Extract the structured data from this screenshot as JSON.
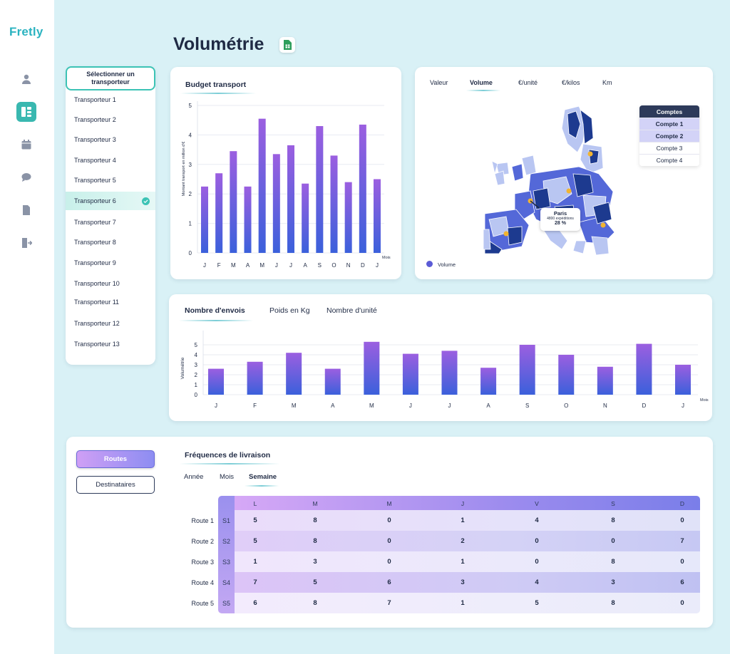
{
  "app": {
    "logo": "Fretly",
    "page_title": "Volumétrie"
  },
  "sidebar": {
    "icons": [
      "user-icon",
      "dashboard-icon",
      "calendar-icon",
      "chat-icon",
      "document-icon",
      "logout-icon"
    ],
    "active": "dashboard-icon"
  },
  "carriers": {
    "header": "Sélectionner un transporteur",
    "items": [
      "Transporteur 1",
      "Transporteur 2",
      "Transporteur 3",
      "Transporteur 4",
      "Transporteur 5",
      "Transporteur 6",
      "Transporteur 7",
      "Transporteur 8",
      "Transporteur 9",
      "Transporteur 10",
      "Transporteur 11",
      "Transporteur 12",
      "Transporteur 13"
    ],
    "selected_index": 5
  },
  "budget": {
    "title": "Budget transport",
    "chart_data": {
      "type": "bar",
      "categories": [
        "J",
        "F",
        "M",
        "A",
        "M",
        "J",
        "J",
        "A",
        "S",
        "O",
        "N",
        "D",
        "J"
      ],
      "values": [
        2.25,
        2.7,
        3.45,
        2.25,
        4.55,
        3.35,
        3.65,
        2.35,
        4.3,
        3.3,
        2.4,
        4.35,
        2.5
      ],
      "ylabel": "Montant transport en million d'€",
      "xlabel": "Mois",
      "ylim": [
        0,
        5
      ],
      "yticks": [
        0,
        1,
        2,
        3,
        4,
        5
      ],
      "colors": {
        "top": "#9b5fe0",
        "bottom": "#3b60db"
      }
    }
  },
  "map": {
    "tabs": [
      "Valeur",
      "Volume",
      "€/unité",
      "€/kilos",
      "Km"
    ],
    "active_tab": "Volume",
    "tooltip": {
      "city": "Paris",
      "detail": "4800 expéditions",
      "percent": "28 %"
    },
    "legend": "Volume",
    "accounts": {
      "header": "Comptes",
      "items": [
        "Compte 1",
        "Compte 2",
        "Compte 3",
        "Compte 4"
      ],
      "selected": [
        "Compte 1",
        "Compte 2"
      ]
    },
    "colors": {
      "dark": "#1d3a8f",
      "mid": "#5468d8",
      "light": "#b9c6f2",
      "marker": "#f2b430"
    }
  },
  "shipments": {
    "tabs": [
      "Nombre d'envois",
      "Poids en Kg",
      "Nombre d'unité"
    ],
    "active_tab": "Nombre d'envois",
    "chart_data": {
      "type": "bar",
      "categories": [
        "J",
        "F",
        "M",
        "A",
        "M",
        "J",
        "J",
        "A",
        "S",
        "O",
        "N",
        "D",
        "J"
      ],
      "values": [
        2.6,
        3.3,
        4.2,
        2.6,
        5.3,
        4.1,
        4.4,
        2.7,
        5.0,
        4.0,
        2.8,
        5.1,
        3.0
      ],
      "ylabel": "Volumétrie",
      "xlabel": "Mois",
      "ylim": [
        0,
        6
      ],
      "yticks": [
        0,
        1,
        2,
        3,
        4,
        5
      ]
    }
  },
  "frequencies": {
    "buttons": {
      "routes": "Routes",
      "recipients": "Destinataires"
    },
    "title": "Fréquences de livraison",
    "tabs": [
      "Année",
      "Mois",
      "Semaine"
    ],
    "active_tab": "Semaine",
    "days": [
      "L",
      "M",
      "M",
      "J",
      "V",
      "S",
      "D"
    ],
    "rows": [
      {
        "route": "Route 1",
        "week": "S1",
        "values": [
          "5",
          "8",
          "0",
          "1",
          "4",
          "8",
          "0"
        ]
      },
      {
        "route": "Route 2",
        "week": "S2",
        "values": [
          "5",
          "8",
          "0",
          "2",
          "0",
          "0",
          "7"
        ]
      },
      {
        "route": "Route 3",
        "week": "S3",
        "values": [
          "1",
          "3",
          "0",
          "1",
          "0",
          "8",
          "0"
        ]
      },
      {
        "route": "Route 4",
        "week": "S4",
        "values": [
          "7",
          "5",
          "6",
          "3",
          "4",
          "3",
          "6"
        ]
      },
      {
        "route": "Route 5",
        "week": "S5",
        "values": [
          "6",
          "8",
          "7",
          "1",
          "5",
          "8",
          "0"
        ]
      }
    ]
  }
}
